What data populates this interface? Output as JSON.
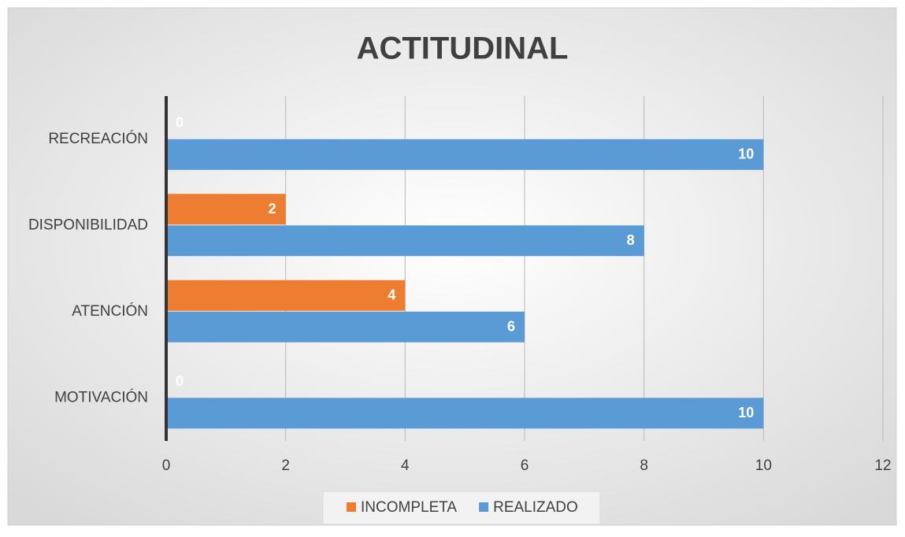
{
  "chart_data": {
    "type": "bar",
    "orientation": "horizontal",
    "title": "ACTITUDINAL",
    "categories": [
      "MOTIVACIÓN",
      "ATENCIÓN",
      "DISPONIBILIDAD",
      "RECREACIÓN"
    ],
    "series": [
      {
        "name": "INCOMPLETA",
        "color": "#ed7d31",
        "values": [
          0,
          4,
          2,
          0
        ]
      },
      {
        "name": "REALIZADO",
        "color": "#5b9bd5",
        "values": [
          10,
          6,
          8,
          10
        ]
      }
    ],
    "xlim": [
      0,
      12
    ],
    "xticks": [
      0,
      2,
      4,
      6,
      8,
      10,
      12
    ],
    "grid": true,
    "legend": "bottom"
  }
}
